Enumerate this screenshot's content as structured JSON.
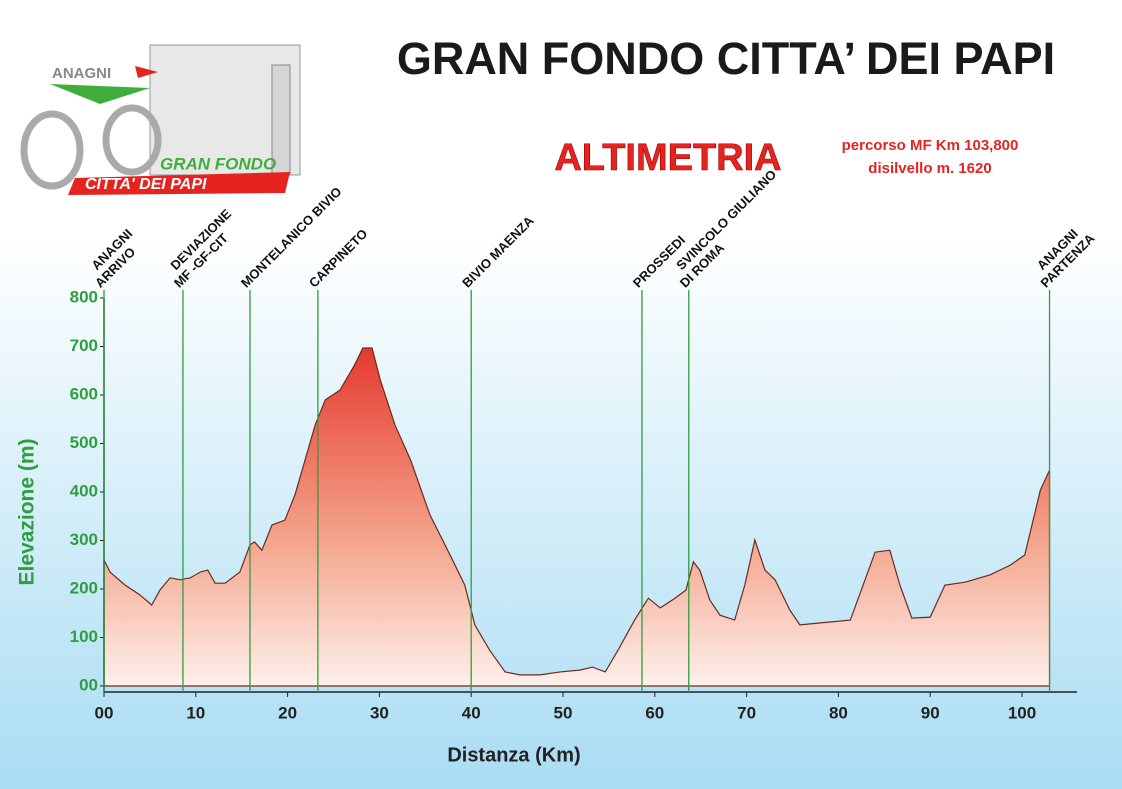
{
  "chart_data": {
    "type": "area",
    "title": "GRAN FONDO CITTA’ DEI PAPI",
    "subtitle": "ALTIMETRIA",
    "notes": [
      "percorso MF Km 103,800",
      "disilvello m. 1620"
    ],
    "logo": {
      "top": "ANAGNI",
      "middle": "GRAN FONDO",
      "band": "CITTA' DEI PAPI"
    },
    "xlabel": "Distanza (Km)",
    "ylabel": "Elevazione (m)",
    "color": "#e53a2f",
    "x": [
      0,
      0.65,
      2.3,
      3.9,
      5.2,
      6.1,
      7.2,
      8.3,
      9.4,
      10.5,
      11.3,
      12.1,
      13.2,
      14.8,
      15.9,
      16.4,
      17.2,
      18.3,
      19.7,
      20.8,
      21.9,
      23.0,
      24.1,
      25.7,
      27.3,
      28.2,
      29.2,
      30.1,
      31.7,
      33.4,
      35.5,
      37.7,
      39.3,
      40.4,
      42.0,
      43.7,
      45.3,
      47.5,
      49.7,
      51.9,
      53.2,
      54.6,
      56.0,
      57.8,
      59.3,
      60.6,
      62.2,
      63.4,
      64.2,
      64.9,
      66.0,
      67.1,
      68.7,
      69.8,
      70.9,
      72.0,
      73.1,
      74.7,
      75.8,
      79.1,
      81.3,
      82.9,
      84.0,
      85.6,
      86.7,
      88.0,
      90.0,
      91.6,
      93.8,
      96.5,
      98.7,
      100.3,
      102.0,
      103.0
    ],
    "values": [
      260,
      235,
      208,
      188,
      167,
      198,
      223,
      219,
      223,
      235,
      239,
      212,
      212,
      235,
      291,
      297,
      280,
      332,
      342,
      394,
      466,
      538,
      590,
      610,
      662,
      697,
      697,
      631,
      538,
      466,
      353,
      270,
      208,
      126,
      74,
      29,
      23,
      23,
      29,
      33,
      39,
      29,
      74,
      136,
      181,
      161,
      181,
      198,
      256,
      239,
      177,
      146,
      136,
      208,
      301,
      239,
      219,
      157,
      126,
      132,
      136,
      219,
      276,
      280,
      208,
      140,
      142,
      208,
      214,
      229,
      249,
      270,
      404,
      445
    ],
    "waypoints": [
      {
        "x": 0,
        "label": [
          "ANAGNI",
          "ARRIVO"
        ]
      },
      {
        "x": 8.6,
        "label": [
          "DEVIAZIONE",
          "MF -GF-CIT"
        ]
      },
      {
        "x": 15.9,
        "label": [
          "MONTELANICO BIVIO"
        ]
      },
      {
        "x": 23.3,
        "label": [
          "CARPINETO"
        ]
      },
      {
        "x": 40.0,
        "label": [
          "BIVIO MAENZA"
        ]
      },
      {
        "x": 58.6,
        "label": [
          "PROSSEDI"
        ]
      },
      {
        "x": 63.7,
        "label": [
          "SVINCOLO  GIULIANO",
          "DI ROMA"
        ]
      },
      {
        "x": 103.0,
        "label": [
          "ANAGNI",
          "PARTENZA"
        ]
      }
    ],
    "xlim": [
      0,
      106
    ],
    "ylim": [
      0,
      800
    ],
    "xticks": [
      {
        "value": 0,
        "label": "00"
      },
      10,
      20,
      30,
      40,
      50,
      60,
      70,
      80,
      90,
      100
    ],
    "yticks": [
      {
        "value": 0,
        "label": "00"
      },
      100,
      200,
      300,
      400,
      500,
      600,
      700,
      800
    ]
  }
}
